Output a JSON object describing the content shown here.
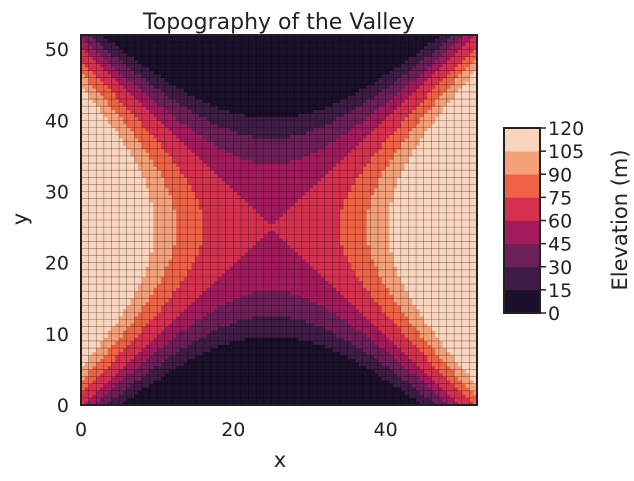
{
  "chart_data": {
    "type": "heatmap",
    "subtype": "filled-contour",
    "title": "Topography of the Valley",
    "xlabel": "x",
    "ylabel": "y",
    "xlim": [
      0,
      52
    ],
    "ylim": [
      0,
      52
    ],
    "xticks": [
      "0",
      "20",
      "40"
    ],
    "yticks": [
      "0",
      "10",
      "20",
      "30",
      "40",
      "50"
    ],
    "colorbar": {
      "label": "Elevation (m)",
      "levels": [
        0,
        15,
        30,
        45,
        60,
        75,
        90,
        105,
        120
      ],
      "ticks": [
        "0",
        "15",
        "30",
        "45",
        "60",
        "75",
        "90",
        "105",
        "120"
      ],
      "colors": [
        "#1a1029",
        "#3e1c46",
        "#6c1f59",
        "#a31b5c",
        "#d6304f",
        "#ef6245",
        "#f4a079",
        "#fbd4be"
      ]
    },
    "surface": {
      "description": "saddle: z = 60 + 0.192*((x-25)^2 - (y-25)^2)",
      "center_x": 25,
      "center_y": 25,
      "base_elevation": 60,
      "coefficient": 0.192
    },
    "grid_overlay": true,
    "grid_spacing": 1
  }
}
